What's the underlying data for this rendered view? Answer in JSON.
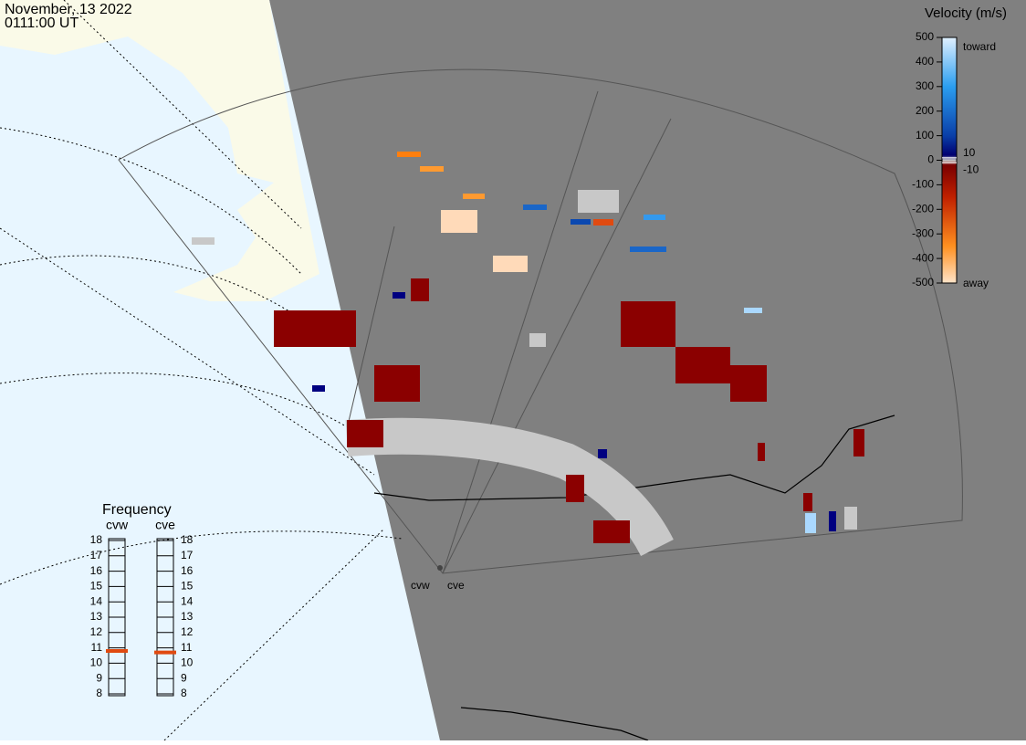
{
  "header": {
    "date": "November, 13 2022",
    "time": "0111:00 UT"
  },
  "colorbar": {
    "title": "Velocity (m/s)",
    "ticks": [
      500,
      400,
      300,
      200,
      100,
      0,
      -100,
      -200,
      -300,
      -400,
      -500
    ],
    "inner_ticks": [
      10,
      -10
    ],
    "toward": "toward",
    "away": "away"
  },
  "frequency": {
    "title": "Frequency",
    "ticks": [
      8,
      9,
      10,
      11,
      12,
      13,
      14,
      15,
      16,
      17,
      18
    ],
    "radars": [
      {
        "name": "cvw",
        "value": 10.8
      },
      {
        "name": "cve",
        "value": 10.7
      }
    ]
  },
  "map": {
    "sites": [
      "cvw",
      "cve"
    ]
  }
}
